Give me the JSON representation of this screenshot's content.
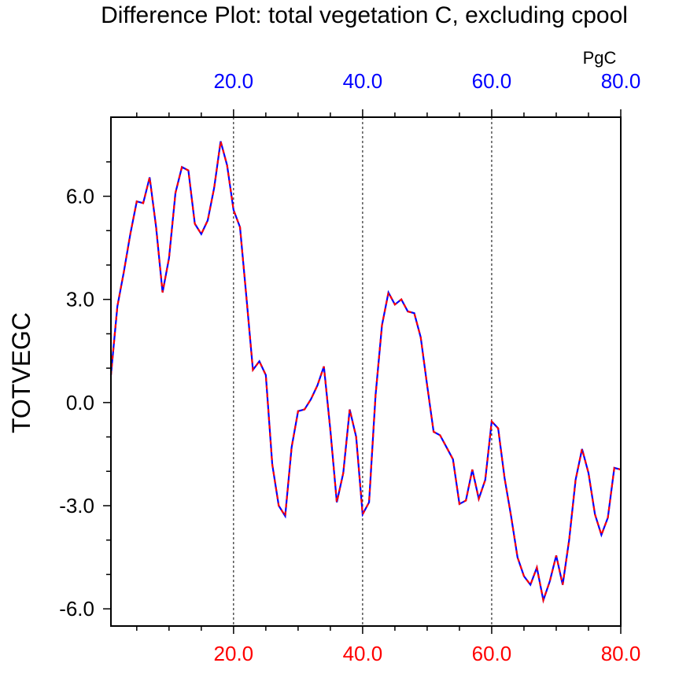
{
  "chart_data": {
    "type": "line",
    "title": "Difference Plot: total vegetation C, excluding cpool",
    "ylabel": "TOTVEGC",
    "units": "PgC",
    "xlim": [
      1,
      80
    ],
    "ylim": [
      -6.5,
      8.3
    ],
    "x_ticks": [
      20,
      40,
      60,
      80
    ],
    "x_tick_labels_bottom": [
      "20.0",
      "40.0",
      "60.0",
      "80.0"
    ],
    "x_tick_labels_top": [
      "20.0",
      "40.0",
      "60.0",
      "80.0"
    ],
    "y_ticks": [
      6,
      3,
      0,
      -3,
      -6
    ],
    "y_tick_labels": [
      "6.0",
      "3.0",
      "0.0",
      "-3.0",
      "-6.0"
    ],
    "gridlines_x": [
      20,
      40,
      60
    ],
    "colors": {
      "bottom_axis": "#ff0000",
      "top_axis": "#0000ff",
      "series_solid": "#0000ff",
      "series_dashed": "#ff0000"
    },
    "series": [
      {
        "name": "solid",
        "style": "solid",
        "color": "#0000ff"
      },
      {
        "name": "dashed",
        "style": "dashed",
        "color": "#ff0000"
      }
    ],
    "x": [
      1,
      2,
      3,
      4,
      5,
      6,
      7,
      8,
      9,
      10,
      11,
      12,
      13,
      14,
      15,
      16,
      17,
      18,
      19,
      20,
      21,
      22,
      23,
      24,
      25,
      26,
      27,
      28,
      29,
      30,
      31,
      32,
      33,
      34,
      35,
      36,
      37,
      38,
      39,
      40,
      41,
      42,
      43,
      44,
      45,
      46,
      47,
      48,
      49,
      50,
      51,
      52,
      53,
      54,
      55,
      56,
      57,
      58,
      59,
      60,
      61,
      62,
      63,
      64,
      65,
      66,
      67,
      68,
      69,
      70,
      71,
      72,
      73,
      74,
      75,
      76,
      77,
      78,
      79,
      80
    ],
    "values": [
      0.8,
      2.8,
      3.8,
      4.9,
      5.85,
      5.8,
      6.55,
      5.1,
      3.2,
      4.2,
      6.1,
      6.85,
      6.75,
      5.2,
      4.9,
      5.3,
      6.25,
      7.6,
      6.9,
      5.6,
      5.1,
      3.05,
      0.95,
      1.2,
      0.8,
      -1.8,
      -3.0,
      -3.3,
      -1.3,
      -0.25,
      -0.2,
      0.1,
      0.5,
      1.05,
      -0.8,
      -2.9,
      -2.05,
      -0.2,
      -1.0,
      -3.25,
      -2.9,
      0.2,
      2.25,
      3.2,
      2.85,
      3.0,
      2.65,
      2.6,
      1.9,
      0.5,
      -0.85,
      -0.95,
      -1.3,
      -1.65,
      -2.95,
      -2.85,
      -1.95,
      -2.8,
      -2.25,
      -0.55,
      -0.75,
      -2.2,
      -3.3,
      -4.5,
      -5.05,
      -5.3,
      -4.8,
      -5.75,
      -5.2,
      -4.45,
      -5.3,
      -4.0,
      -2.25,
      -1.35,
      -2.05,
      -3.25,
      -3.85,
      -3.35,
      -1.9,
      -1.95
    ]
  }
}
